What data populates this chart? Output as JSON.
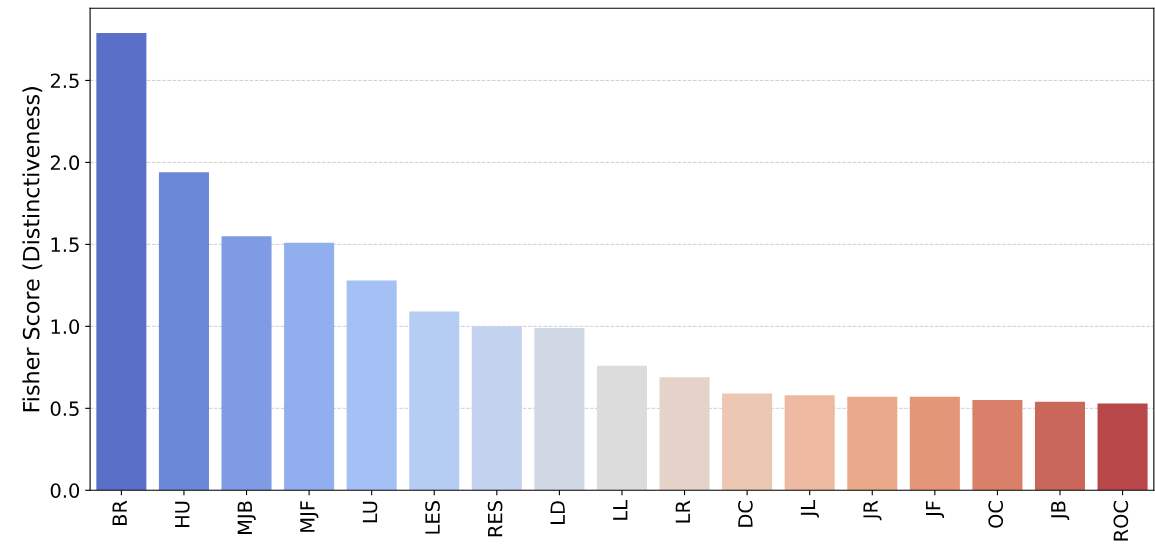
{
  "chart_data": {
    "type": "bar",
    "ylabel": "Fisher Score (Distinctiveness)",
    "categories": [
      "BR",
      "HU",
      "MJB",
      "MJF",
      "LU",
      "LES",
      "RES",
      "LD",
      "LL",
      "LR",
      "DC",
      "JL",
      "JR",
      "JF",
      "OC",
      "JB",
      "ROC"
    ],
    "values": [
      2.79,
      1.94,
      1.55,
      1.51,
      1.28,
      1.09,
      1.0,
      0.99,
      0.76,
      0.69,
      0.59,
      0.58,
      0.57,
      0.57,
      0.55,
      0.54,
      0.53
    ],
    "colors": [
      "#5a6fc8",
      "#6b87d8",
      "#7f9be4",
      "#91aeee",
      "#a5c0f5",
      "#b5ccf3",
      "#c3d2ee",
      "#d0d8e6",
      "#dcdcdc",
      "#e5d3ca",
      "#ebc7b4",
      "#edb9a0",
      "#eaa98b",
      "#e49678",
      "#d88069",
      "#c9685a",
      "#b8474a"
    ],
    "ylim": [
      0,
      2.94
    ],
    "yticks": [
      {
        "value": 0,
        "label": "0.0"
      },
      {
        "value": 0.5,
        "label": "0.5"
      },
      {
        "value": 1,
        "label": "1.0"
      },
      {
        "value": 1.5,
        "label": "1.5"
      },
      {
        "value": 2,
        "label": "2.0"
      },
      {
        "value": 2.5,
        "label": "2.5"
      }
    ],
    "grid": "y"
  }
}
